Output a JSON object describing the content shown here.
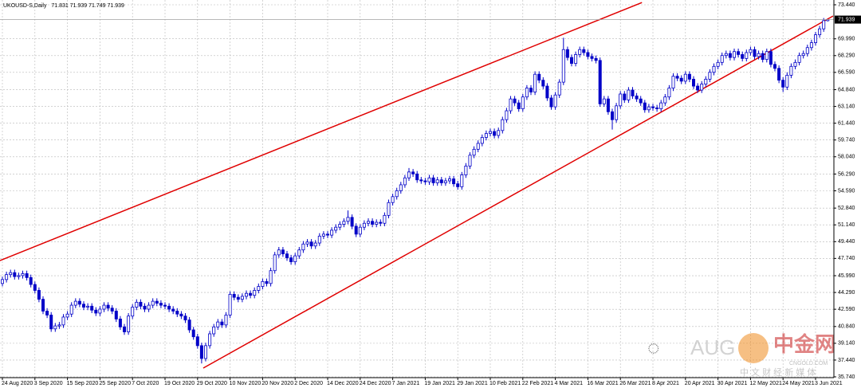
{
  "chart_data": {
    "type": "candlestick",
    "title": "UKOUSD-S,Daily",
    "categories": [
      "24 Aug 2020",
      null,
      null,
      null,
      null,
      null,
      null,
      null,
      "3 Sep 2020",
      null,
      null,
      null,
      null,
      null,
      null,
      null,
      "15 Sep 2020",
      null,
      null,
      null,
      null,
      null,
      null,
      null,
      "25 Sep 2020",
      null,
      null,
      null,
      null,
      null,
      null,
      null,
      "7 Oct 2020",
      null,
      null,
      null,
      null,
      null,
      null,
      null,
      "19 Oct 2020",
      null,
      null,
      null,
      null,
      null,
      null,
      null,
      "29 Oct 2020",
      null,
      null,
      null,
      null,
      null,
      null,
      null,
      "10 Nov 2020",
      null,
      null,
      null,
      null,
      null,
      null,
      null,
      "20 Nov 2020",
      null,
      null,
      null,
      null,
      null,
      null,
      null,
      "2 Dec 2020",
      null,
      null,
      null,
      null,
      null,
      null,
      null,
      "14 Dec 2020",
      null,
      null,
      null,
      null,
      null,
      null,
      null,
      "24 Dec 2020",
      null,
      null,
      null,
      null,
      null,
      null,
      null,
      "7 Jan 2021",
      null,
      null,
      null,
      null,
      null,
      null,
      null,
      "19 Jan 2021",
      null,
      null,
      null,
      null,
      null,
      null,
      null,
      "29 Jan 2021",
      null,
      null,
      null,
      null,
      null,
      null,
      null,
      "10 Feb 2021",
      null,
      null,
      null,
      null,
      null,
      null,
      null,
      "22 Feb 2021",
      null,
      null,
      null,
      null,
      null,
      null,
      null,
      "4 Mar 2021",
      null,
      null,
      null,
      null,
      null,
      null,
      null,
      "16 Mar 2021",
      null,
      null,
      null,
      null,
      null,
      null,
      null,
      "26 Mar 2021",
      null,
      null,
      null,
      null,
      null,
      null,
      null,
      "8 Apr 2021",
      null,
      null,
      null,
      null,
      null,
      null,
      null,
      "20 Apr 2021",
      null,
      null,
      null,
      null,
      null,
      null,
      null,
      "30 Apr 2021",
      null,
      null,
      null,
      null,
      null,
      null,
      null,
      "12 May 2021",
      null,
      null,
      null,
      null,
      null,
      null,
      null,
      "24 May 2021",
      null,
      null,
      null,
      null,
      null,
      null,
      null,
      "3 Jun 2021",
      null,
      null,
      null
    ],
    "open": [
      45.2,
      45.6,
      46.1,
      46.3,
      45.9,
      46.0,
      46.2,
      45.8,
      45.1,
      44.5,
      43.6,
      42.4,
      42.0,
      40.6,
      40.9,
      41.0,
      41.8,
      42.1,
      43.0,
      43.4,
      43.1,
      42.8,
      42.9,
      42.5,
      42.2,
      42.6,
      43.0,
      42.7,
      42.4,
      41.6,
      40.8,
      40.3,
      41.9,
      42.8,
      43.3,
      42.9,
      42.6,
      43.0,
      43.4,
      43.2,
      43.0,
      42.9,
      42.6,
      42.4,
      42.1,
      41.9,
      41.5,
      40.5,
      39.8,
      38.9,
      37.6,
      38.9,
      40.1,
      40.8,
      41.3,
      41.0,
      42.0,
      44.1,
      43.8,
      43.6,
      43.9,
      44.2,
      44.0,
      44.5,
      44.9,
      45.4,
      45.2,
      46.5,
      48.1,
      48.6,
      48.2,
      47.8,
      47.4,
      48.0,
      48.6,
      49.2,
      49.4,
      49.0,
      49.3,
      50.0,
      50.2,
      50.1,
      50.6,
      50.9,
      51.2,
      51.5,
      51.9,
      51.0,
      50.2,
      50.9,
      51.3,
      51.5,
      51.2,
      51.4,
      51.3,
      52.1,
      53.4,
      54.0,
      54.6,
      55.2,
      55.9,
      56.5,
      56.3,
      55.7,
      55.6,
      55.5,
      55.9,
      55.4,
      55.7,
      55.4,
      55.6,
      55.8,
      55.3,
      55.0,
      56.2,
      57.1,
      58.2,
      58.8,
      59.4,
      60.0,
      60.4,
      60.6,
      60.2,
      60.7,
      61.8,
      62.7,
      63.9,
      63.5,
      62.9,
      64.1,
      65.0,
      64.6,
      66.4,
      65.8,
      65.2,
      64.0,
      63.1,
      64.3,
      65.6,
      68.9,
      68.1,
      67.5,
      68.4,
      68.9,
      68.6,
      68.2,
      68.0,
      67.8,
      63.4,
      63.9,
      62.6,
      61.8,
      63.2,
      64.4,
      63.8,
      64.8,
      64.2,
      63.9,
      63.5,
      62.8,
      63.1,
      63.0,
      62.9,
      63.5,
      64.1,
      65.0,
      66.2,
      66.0,
      65.7,
      66.4,
      65.9,
      65.2,
      64.8,
      65.4,
      65.9,
      66.6,
      67.2,
      67.6,
      68.3,
      68.5,
      68.1,
      68.7,
      68.4,
      68.0,
      68.6,
      68.9,
      68.2,
      68.5,
      67.9,
      68.7,
      67.4,
      67.0,
      65.8,
      65.1,
      66.3,
      67.2,
      67.6,
      68.3,
      68.5,
      69.1,
      69.6,
      70.4,
      71.0,
      71.831
    ],
    "high": [
      45.9,
      46.4,
      46.6,
      46.6,
      46.3,
      46.5,
      46.5,
      46.1,
      45.4,
      44.8,
      43.9,
      42.7,
      42.3,
      41.2,
      41.3,
      42.1,
      42.4,
      43.3,
      43.7,
      43.7,
      43.4,
      43.2,
      43.2,
      42.8,
      42.9,
      43.3,
      43.3,
      43.0,
      42.7,
      41.9,
      41.1,
      42.2,
      43.1,
      43.6,
      43.6,
      43.2,
      43.3,
      43.7,
      43.7,
      43.5,
      43.3,
      43.2,
      42.9,
      42.7,
      42.4,
      42.2,
      41.8,
      40.8,
      40.1,
      39.2,
      39.2,
      40.4,
      41.1,
      41.6,
      41.6,
      42.3,
      44.4,
      44.4,
      44.1,
      44.2,
      44.5,
      44.5,
      44.8,
      45.2,
      45.7,
      45.7,
      46.8,
      48.4,
      48.9,
      48.9,
      48.5,
      48.1,
      48.3,
      48.9,
      49.5,
      49.7,
      49.7,
      49.6,
      50.3,
      50.5,
      50.5,
      50.9,
      51.2,
      51.5,
      51.8,
      52.6,
      52.2,
      51.3,
      51.2,
      51.6,
      51.8,
      51.8,
      51.7,
      51.7,
      52.4,
      53.7,
      54.3,
      54.9,
      55.5,
      56.2,
      56.9,
      56.8,
      56.6,
      56.0,
      55.9,
      56.2,
      56.2,
      56.0,
      56.0,
      55.9,
      56.1,
      56.1,
      55.6,
      56.5,
      57.4,
      58.5,
      59.1,
      59.7,
      60.3,
      60.7,
      60.9,
      60.9,
      61.0,
      62.1,
      63.0,
      64.2,
      64.2,
      63.8,
      64.4,
      65.3,
      65.3,
      66.7,
      66.7,
      66.1,
      65.5,
      64.3,
      64.6,
      65.9,
      70.1,
      69.2,
      68.4,
      68.7,
      69.2,
      69.2,
      68.9,
      68.5,
      68.3,
      68.1,
      64.2,
      64.2,
      62.9,
      63.5,
      64.7,
      64.7,
      65.1,
      65.1,
      64.5,
      64.2,
      63.8,
      63.4,
      63.4,
      63.3,
      63.8,
      64.4,
      65.3,
      66.5,
      66.5,
      66.3,
      66.7,
      66.7,
      66.2,
      65.5,
      65.7,
      66.2,
      66.9,
      67.5,
      67.9,
      68.6,
      68.8,
      68.8,
      69.0,
      69.0,
      68.7,
      68.9,
      69.2,
      69.2,
      68.8,
      68.8,
      69.0,
      69.0,
      67.7,
      67.3,
      66.1,
      66.6,
      67.5,
      67.9,
      68.6,
      68.8,
      69.4,
      69.9,
      70.7,
      71.3,
      72.1,
      71.939
    ],
    "low": [
      44.9,
      45.3,
      45.8,
      45.6,
      45.6,
      45.7,
      45.5,
      44.8,
      44.2,
      43.3,
      42.1,
      41.7,
      40.3,
      40.3,
      40.6,
      40.7,
      41.5,
      41.8,
      42.7,
      42.8,
      42.5,
      42.5,
      42.2,
      41.9,
      41.9,
      42.3,
      42.4,
      42.1,
      41.3,
      40.5,
      40.0,
      40.0,
      41.6,
      42.5,
      42.6,
      42.3,
      42.3,
      42.7,
      42.9,
      42.7,
      42.6,
      42.3,
      42.1,
      41.8,
      41.6,
      41.2,
      40.2,
      39.5,
      38.6,
      37.1,
      37.3,
      38.6,
      39.8,
      40.5,
      40.7,
      40.7,
      41.7,
      43.5,
      43.3,
      43.3,
      43.6,
      43.7,
      43.7,
      44.2,
      44.6,
      44.9,
      44.9,
      46.2,
      47.8,
      47.9,
      47.5,
      47.1,
      47.1,
      47.7,
      48.3,
      48.9,
      48.7,
      48.7,
      49.0,
      49.7,
      49.8,
      49.8,
      50.3,
      50.6,
      50.9,
      51.2,
      50.7,
      49.9,
      49.9,
      50.6,
      51.0,
      50.9,
      50.9,
      51.0,
      51.0,
      51.8,
      53.1,
      53.7,
      54.3,
      54.9,
      55.6,
      56.0,
      55.4,
      55.3,
      55.2,
      55.2,
      55.1,
      55.1,
      55.1,
      55.1,
      55.3,
      55.0,
      54.7,
      54.7,
      55.9,
      56.8,
      57.9,
      58.5,
      59.1,
      59.7,
      60.1,
      59.9,
      59.9,
      60.4,
      61.5,
      62.4,
      63.2,
      62.6,
      62.6,
      63.8,
      64.3,
      64.3,
      65.5,
      64.9,
      63.7,
      62.8,
      62.8,
      64.0,
      65.3,
      67.8,
      67.2,
      67.2,
      68.1,
      68.3,
      67.9,
      67.7,
      67.5,
      63.1,
      63.1,
      62.3,
      60.8,
      61.5,
      62.9,
      63.5,
      63.5,
      63.9,
      63.6,
      63.2,
      62.5,
      62.5,
      62.7,
      62.6,
      62.6,
      63.2,
      63.8,
      64.7,
      65.7,
      65.4,
      65.4,
      65.6,
      64.9,
      64.5,
      64.5,
      65.1,
      65.6,
      66.3,
      66.9,
      67.3,
      68.0,
      67.8,
      67.8,
      68.1,
      67.7,
      67.7,
      68.3,
      67.9,
      67.9,
      67.6,
      67.6,
      67.1,
      66.7,
      65.5,
      64.6,
      64.8,
      66.0,
      66.9,
      67.3,
      68.0,
      68.2,
      68.8,
      69.3,
      70.1,
      70.7,
      71.749
    ],
    "close": [
      45.6,
      46.1,
      46.3,
      45.9,
      46.0,
      46.2,
      45.8,
      45.1,
      44.5,
      43.6,
      42.4,
      42.0,
      40.6,
      40.9,
      41.0,
      41.8,
      42.1,
      43.0,
      43.4,
      43.1,
      42.8,
      42.9,
      42.5,
      42.2,
      42.6,
      43.0,
      42.7,
      42.4,
      41.6,
      40.8,
      40.3,
      41.9,
      42.8,
      43.3,
      42.9,
      42.6,
      43.0,
      43.4,
      43.2,
      43.0,
      42.9,
      42.6,
      42.4,
      42.1,
      41.9,
      41.5,
      40.5,
      39.8,
      38.9,
      37.6,
      38.9,
      40.1,
      40.8,
      41.3,
      41.0,
      42.0,
      44.1,
      43.8,
      43.6,
      43.9,
      44.2,
      44.0,
      44.5,
      44.9,
      45.4,
      45.2,
      46.5,
      48.1,
      48.6,
      48.2,
      47.8,
      47.4,
      48.0,
      48.6,
      49.2,
      49.4,
      49.0,
      49.3,
      50.0,
      50.2,
      50.1,
      50.6,
      50.9,
      51.2,
      51.5,
      51.9,
      51.0,
      50.2,
      50.9,
      51.3,
      51.5,
      51.2,
      51.4,
      51.3,
      52.1,
      53.4,
      54.0,
      54.6,
      55.2,
      55.9,
      56.5,
      56.3,
      55.7,
      55.6,
      55.5,
      55.9,
      55.4,
      55.7,
      55.4,
      55.6,
      55.8,
      55.3,
      55.0,
      56.2,
      57.1,
      58.2,
      58.8,
      59.4,
      60.0,
      60.4,
      60.6,
      60.2,
      60.7,
      61.8,
      62.7,
      63.9,
      63.5,
      62.9,
      64.1,
      65.0,
      64.6,
      66.4,
      65.8,
      65.2,
      64.0,
      63.1,
      64.3,
      65.6,
      68.9,
      68.1,
      67.5,
      68.4,
      68.9,
      68.6,
      68.2,
      68.0,
      67.8,
      63.4,
      63.9,
      62.6,
      61.8,
      63.2,
      64.4,
      63.8,
      64.8,
      64.2,
      63.9,
      63.5,
      62.8,
      63.1,
      63.0,
      62.9,
      63.5,
      64.1,
      65.0,
      66.2,
      66.0,
      65.7,
      66.4,
      65.9,
      65.2,
      64.8,
      65.4,
      65.9,
      66.6,
      67.2,
      67.6,
      68.3,
      68.5,
      68.1,
      68.7,
      68.4,
      68.0,
      68.6,
      68.9,
      68.2,
      68.5,
      67.9,
      68.7,
      67.4,
      67.0,
      65.8,
      65.1,
      66.3,
      67.2,
      67.6,
      68.3,
      68.5,
      69.1,
      69.6,
      70.4,
      71.0,
      71.83,
      71.939
    ],
    "up_color": "#ffffff",
    "down_color": "#0000c8",
    "wick_color": "#0000c8",
    "trendlines": [
      {
        "color": "#e00000",
        "x": [
          -0.6,
          157.3
        ],
        "y": [
          47.52,
          73.67
        ]
      },
      {
        "color": "#e00000",
        "x": [
          49.4,
          204.3
        ],
        "y": [
          36.63,
          72.3
        ]
      }
    ],
    "ylim": [
      35.74,
      73.44
    ],
    "yticks": [
      {
        "value": 73.44,
        "label": "73.440"
      },
      {
        "value": 69.99,
        "label": "69.990"
      },
      {
        "value": 68.29,
        "label": "68.290"
      },
      {
        "value": 66.59,
        "label": "66.590"
      },
      {
        "value": 64.84,
        "label": "64.840"
      },
      {
        "value": 63.14,
        "label": "63.140"
      },
      {
        "value": 61.44,
        "label": "61.440"
      },
      {
        "value": 59.74,
        "label": "59.740"
      },
      {
        "value": 58.04,
        "label": "58.040"
      },
      {
        "value": 56.29,
        "label": "56.290"
      },
      {
        "value": 54.59,
        "label": "54.590"
      },
      {
        "value": 52.84,
        "label": "52.840"
      },
      {
        "value": 51.14,
        "label": "51.140"
      },
      {
        "value": 49.44,
        "label": "49.440"
      },
      {
        "value": 47.74,
        "label": "47.740"
      },
      {
        "value": 45.99,
        "label": "45.990"
      },
      {
        "value": 44.29,
        "label": "44.290"
      },
      {
        "value": 42.59,
        "label": "42.590"
      },
      {
        "value": 40.84,
        "label": "40.840"
      },
      {
        "value": 39.14,
        "label": "39.140"
      },
      {
        "value": 37.44,
        "label": "37.440"
      },
      {
        "value": 35.74,
        "label": "35.740"
      }
    ],
    "grid": true,
    "watermark": {
      "brand": "AUG",
      "site": "中金网",
      "url": "CNGOLD.COM",
      "slogan": "中 文 财 经 新 媒 体"
    }
  }
}
